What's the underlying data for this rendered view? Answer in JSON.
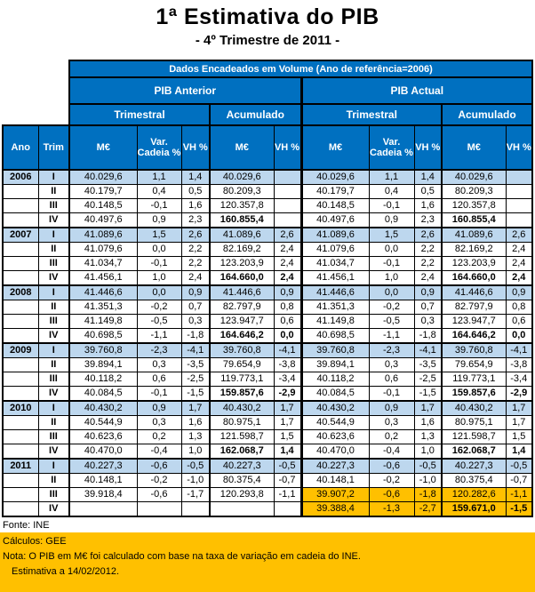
{
  "title": "1ª Estimativa do PIB",
  "subtitle": "- 4º Trimestre de 2011 -",
  "colors": {
    "header_blue": "#0070C0",
    "row_highlight_blue": "#BDD7EE",
    "highlight_orange": "#FFC000"
  },
  "table": {
    "header": {
      "top": "Dados Encadeados em Volume (Ano de referência=2006)",
      "group_left": "PIB Anterior",
      "group_right": "PIB Actual",
      "sub_trimestral": "Trimestral",
      "sub_acumulado": "Acumulado",
      "ano": "Ano",
      "trim": "Trim",
      "me": "M€",
      "var_cadeia": "Var. Cadeia %",
      "vh": "VH %"
    },
    "rows": [
      {
        "year": "2006",
        "trim": "I",
        "highlight": "blue",
        "actual_highlight": null,
        "anterior": [
          "40.029,6",
          "1,1",
          "1,4",
          "40.029,6",
          ""
        ],
        "actual": [
          "40.029,6",
          "1,1",
          "1,4",
          "40.029,6",
          ""
        ]
      },
      {
        "year": "",
        "trim": "II",
        "highlight": null,
        "actual_highlight": null,
        "anterior": [
          "40.179,7",
          "0,4",
          "0,5",
          "80.209,3",
          ""
        ],
        "actual": [
          "40.179,7",
          "0,4",
          "0,5",
          "80.209,3",
          ""
        ]
      },
      {
        "year": "",
        "trim": "III",
        "highlight": null,
        "actual_highlight": null,
        "anterior": [
          "40.148,5",
          "-0,1",
          "1,6",
          "120.357,8",
          ""
        ],
        "actual": [
          "40.148,5",
          "-0,1",
          "1,6",
          "120.357,8",
          ""
        ]
      },
      {
        "year": "",
        "trim": "IV",
        "highlight": null,
        "actual_highlight": null,
        "anterior": [
          "40.497,6",
          "0,9",
          "2,3",
          "160.855,4",
          ""
        ],
        "actual": [
          "40.497,6",
          "0,9",
          "2,3",
          "160.855,4",
          ""
        ]
      },
      {
        "year": "2007",
        "trim": "I",
        "highlight": "blue",
        "actual_highlight": null,
        "anterior": [
          "41.089,6",
          "1,5",
          "2,6",
          "41.089,6",
          "2,6"
        ],
        "actual": [
          "41.089,6",
          "1,5",
          "2,6",
          "41.089,6",
          "2,6"
        ]
      },
      {
        "year": "",
        "trim": "II",
        "highlight": null,
        "actual_highlight": null,
        "anterior": [
          "41.079,6",
          "0,0",
          "2,2",
          "82.169,2",
          "2,4"
        ],
        "actual": [
          "41.079,6",
          "0,0",
          "2,2",
          "82.169,2",
          "2,4"
        ]
      },
      {
        "year": "",
        "trim": "III",
        "highlight": null,
        "actual_highlight": null,
        "anterior": [
          "41.034,7",
          "-0,1",
          "2,2",
          "123.203,9",
          "2,4"
        ],
        "actual": [
          "41.034,7",
          "-0,1",
          "2,2",
          "123.203,9",
          "2,4"
        ]
      },
      {
        "year": "",
        "trim": "IV",
        "highlight": null,
        "actual_highlight": null,
        "anterior": [
          "41.456,1",
          "1,0",
          "2,4",
          "164.660,0",
          "2,4"
        ],
        "actual": [
          "41.456,1",
          "1,0",
          "2,4",
          "164.660,0",
          "2,4"
        ]
      },
      {
        "year": "2008",
        "trim": "I",
        "highlight": "blue",
        "actual_highlight": null,
        "anterior": [
          "41.446,6",
          "0,0",
          "0,9",
          "41.446,6",
          "0,9"
        ],
        "actual": [
          "41.446,6",
          "0,0",
          "0,9",
          "41.446,6",
          "0,9"
        ]
      },
      {
        "year": "",
        "trim": "II",
        "highlight": null,
        "actual_highlight": null,
        "anterior": [
          "41.351,3",
          "-0,2",
          "0,7",
          "82.797,9",
          "0,8"
        ],
        "actual": [
          "41.351,3",
          "-0,2",
          "0,7",
          "82.797,9",
          "0,8"
        ]
      },
      {
        "year": "",
        "trim": "III",
        "highlight": null,
        "actual_highlight": null,
        "anterior": [
          "41.149,8",
          "-0,5",
          "0,3",
          "123.947,7",
          "0,6"
        ],
        "actual": [
          "41.149,8",
          "-0,5",
          "0,3",
          "123.947,7",
          "0,6"
        ]
      },
      {
        "year": "",
        "trim": "IV",
        "highlight": null,
        "actual_highlight": null,
        "anterior": [
          "40.698,5",
          "-1,1",
          "-1,8",
          "164.646,2",
          "0,0"
        ],
        "actual": [
          "40.698,5",
          "-1,1",
          "-1,8",
          "164.646,2",
          "0,0"
        ]
      },
      {
        "year": "2009",
        "trim": "I",
        "highlight": "blue",
        "actual_highlight": null,
        "anterior": [
          "39.760,8",
          "-2,3",
          "-4,1",
          "39.760,8",
          "-4,1"
        ],
        "actual": [
          "39.760,8",
          "-2,3",
          "-4,1",
          "39.760,8",
          "-4,1"
        ]
      },
      {
        "year": "",
        "trim": "II",
        "highlight": null,
        "actual_highlight": null,
        "anterior": [
          "39.894,1",
          "0,3",
          "-3,5",
          "79.654,9",
          "-3,8"
        ],
        "actual": [
          "39.894,1",
          "0,3",
          "-3,5",
          "79.654,9",
          "-3,8"
        ]
      },
      {
        "year": "",
        "trim": "III",
        "highlight": null,
        "actual_highlight": null,
        "anterior": [
          "40.118,2",
          "0,6",
          "-2,5",
          "119.773,1",
          "-3,4"
        ],
        "actual": [
          "40.118,2",
          "0,6",
          "-2,5",
          "119.773,1",
          "-3,4"
        ]
      },
      {
        "year": "",
        "trim": "IV",
        "highlight": null,
        "actual_highlight": null,
        "anterior": [
          "40.084,5",
          "-0,1",
          "-1,5",
          "159.857,6",
          "-2,9"
        ],
        "actual": [
          "40.084,5",
          "-0,1",
          "-1,5",
          "159.857,6",
          "-2,9"
        ]
      },
      {
        "year": "2010",
        "trim": "I",
        "highlight": "blue",
        "actual_highlight": null,
        "anterior": [
          "40.430,2",
          "0,9",
          "1,7",
          "40.430,2",
          "1,7"
        ],
        "actual": [
          "40.430,2",
          "0,9",
          "1,7",
          "40.430,2",
          "1,7"
        ]
      },
      {
        "year": "",
        "trim": "II",
        "highlight": null,
        "actual_highlight": null,
        "anterior": [
          "40.544,9",
          "0,3",
          "1,6",
          "80.975,1",
          "1,7"
        ],
        "actual": [
          "40.544,9",
          "0,3",
          "1,6",
          "80.975,1",
          "1,7"
        ]
      },
      {
        "year": "",
        "trim": "III",
        "highlight": null,
        "actual_highlight": null,
        "anterior": [
          "40.623,6",
          "0,2",
          "1,3",
          "121.598,7",
          "1,5"
        ],
        "actual": [
          "40.623,6",
          "0,2",
          "1,3",
          "121.598,7",
          "1,5"
        ]
      },
      {
        "year": "",
        "trim": "IV",
        "highlight": null,
        "actual_highlight": null,
        "anterior": [
          "40.470,0",
          "-0,4",
          "1,0",
          "162.068,7",
          "1,4"
        ],
        "actual": [
          "40.470,0",
          "-0,4",
          "1,0",
          "162.068,7",
          "1,4"
        ]
      },
      {
        "year": "2011",
        "trim": "I",
        "highlight": "blue",
        "actual_highlight": null,
        "anterior": [
          "40.227,3",
          "-0,6",
          "-0,5",
          "40.227,3",
          "-0,5"
        ],
        "actual": [
          "40.227,3",
          "-0,6",
          "-0,5",
          "40.227,3",
          "-0,5"
        ]
      },
      {
        "year": "",
        "trim": "II",
        "highlight": null,
        "actual_highlight": null,
        "anterior": [
          "40.148,1",
          "-0,2",
          "-1,0",
          "80.375,4",
          "-0,7"
        ],
        "actual": [
          "40.148,1",
          "-0,2",
          "-1,0",
          "80.375,4",
          "-0,7"
        ]
      },
      {
        "year": "",
        "trim": "III",
        "highlight": null,
        "actual_highlight": "orange",
        "anterior": [
          "39.918,4",
          "-0,6",
          "-1,7",
          "120.293,8",
          "-1,1"
        ],
        "actual": [
          "39.907,2",
          "-0,6",
          "-1,8",
          "120.282,6",
          "-1,1"
        ]
      },
      {
        "year": "",
        "trim": "IV",
        "highlight": null,
        "actual_highlight": "orange",
        "anterior": [
          "",
          "",
          "",
          "",
          ""
        ],
        "actual": [
          "39.388,4",
          "-1,3",
          "-2,7",
          "159.671,0",
          "-1,5"
        ]
      }
    ]
  },
  "footer": {
    "fonte": "Fonte: INE",
    "calculos": "Cálculos: GEE",
    "nota": "Nota: O PIB em M€ foi calculado com base na taxa de variação em cadeia do INE.",
    "estimativa": "Estimativa a 14/02/2012."
  }
}
